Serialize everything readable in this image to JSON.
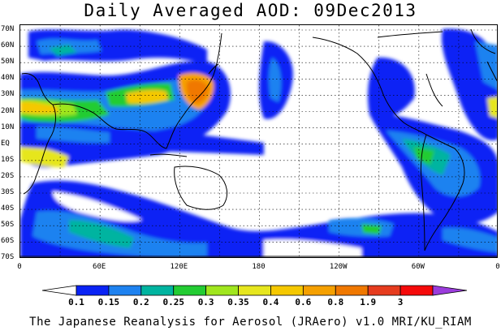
{
  "title": "Daily Averaged AOD: 09Dec2013",
  "credit": "The Japanese Reanalysis for Aerosol (JRAero) v1.0 MRI/KU_RIAM",
  "map": {
    "variable": "AOD",
    "date": "09Dec2013",
    "lat_ticks": [
      "70N",
      "60N",
      "50N",
      "40N",
      "30N",
      "20N",
      "10N",
      "EQ",
      "10S",
      "20S",
      "30S",
      "40S",
      "50S",
      "60S",
      "70S"
    ],
    "lon_ticks": [
      "0",
      "60E",
      "120E",
      "180",
      "120W",
      "60W",
      "0"
    ],
    "gridlines": true
  },
  "colorbar": {
    "levels": [
      "0.1",
      "0.15",
      "0.2",
      "0.25",
      "0.3",
      "0.35",
      "0.4",
      "0.6",
      "0.8",
      "1.9",
      "3"
    ],
    "colors": [
      "#ffffff",
      "#0a23f5",
      "#1e82f0",
      "#00b4a0",
      "#23cc33",
      "#a0e61e",
      "#e6e61e",
      "#f5c800",
      "#f5a000",
      "#f07800",
      "#e63c1e",
      "#f50a0a",
      "#9b3cdc"
    ]
  }
}
